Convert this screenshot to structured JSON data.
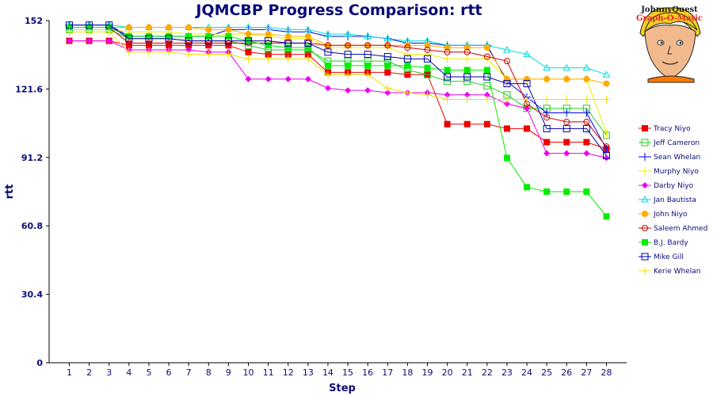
{
  "chart_data": {
    "type": "line",
    "title": "JQMCBP Progress Comparison: rtt",
    "xlabel": "Step",
    "ylabel": "rtt",
    "x": [
      1,
      2,
      3,
      4,
      5,
      6,
      7,
      8,
      9,
      10,
      11,
      12,
      13,
      14,
      15,
      16,
      17,
      18,
      19,
      20,
      21,
      22,
      23,
      24,
      25,
      26,
      27,
      28
    ],
    "yticks": [
      "0",
      "30.4",
      "60.8",
      "91.2",
      "121.6",
      "152"
    ],
    "ylim": [
      0,
      152
    ],
    "grid": false,
    "legend_position": "right",
    "series": [
      {
        "name": "Tracy Niyo",
        "color": "#ee0000",
        "marker": "filled-square",
        "values": [
          143,
          143,
          143,
          141,
          141,
          141,
          141,
          141,
          141,
          138,
          137,
          137,
          137,
          129,
          129,
          129,
          129,
          128,
          128,
          106,
          106,
          106,
          104,
          104,
          98,
          98,
          98,
          95
        ]
      },
      {
        "name": "Jeff Cameron",
        "color": "#22cc22",
        "marker": "open-square",
        "values": [
          148,
          148,
          148,
          144,
          144,
          144,
          143,
          143,
          143,
          141,
          139,
          139,
          139,
          134,
          134,
          134,
          134,
          130,
          128,
          125,
          125,
          123,
          119,
          113,
          113,
          113,
          113,
          101
        ]
      },
      {
        "name": "Sean Whelan",
        "color": "#0000ee",
        "marker": "plus",
        "values": [
          150,
          150,
          150,
          145,
          145,
          145,
          145,
          145,
          148,
          148,
          148,
          147,
          147,
          145,
          145,
          145,
          144,
          142,
          142,
          141,
          141,
          141,
          125,
          118,
          111,
          111,
          111,
          95
        ]
      },
      {
        "name": "Murphy Niyo",
        "color": "#eeee00",
        "marker": "plus",
        "values": [
          148,
          148,
          148,
          147,
          147,
          147,
          146,
          146,
          146,
          146,
          145,
          144,
          144,
          140,
          140,
          140,
          140,
          137,
          137,
          135,
          135,
          135,
          126,
          126,
          126,
          126,
          126,
          102
        ]
      },
      {
        "name": "Darby Niyo",
        "color": "#ee00ee",
        "marker": "filled-diamond",
        "values": [
          143,
          143,
          143,
          139,
          139,
          139,
          139,
          138,
          138,
          126,
          126,
          126,
          126,
          122,
          121,
          121,
          120,
          120,
          120,
          119,
          119,
          119,
          115,
          113,
          93,
          93,
          93,
          91
        ]
      },
      {
        "name": "Jan Bautista",
        "color": "#00dddd",
        "marker": "open-triangle",
        "values": [
          150,
          150,
          150,
          149,
          149,
          149,
          149,
          149,
          149,
          149,
          149,
          148,
          148,
          146,
          146,
          145,
          144,
          143,
          143,
          141,
          141,
          141,
          139,
          137,
          131,
          131,
          131,
          128
        ]
      },
      {
        "name": "John Niyo",
        "color": "#ffaa00",
        "marker": "filled-circle",
        "values": [
          149,
          149,
          149,
          149,
          149,
          149,
          149,
          148,
          148,
          146,
          146,
          145,
          145,
          141,
          141,
          141,
          141,
          141,
          141,
          140,
          140,
          140,
          126,
          126,
          126,
          126,
          126,
          124
        ]
      },
      {
        "name": "Saleem Ahmed",
        "color": "#cc0000",
        "marker": "open-circle",
        "values": [
          149,
          149,
          149,
          142,
          142,
          142,
          142,
          142,
          142,
          142,
          142,
          142,
          142,
          141,
          141,
          141,
          141,
          140,
          139,
          138,
          138,
          136,
          134,
          115,
          109,
          107,
          107,
          96
        ]
      },
      {
        "name": "B.J. Bardy",
        "color": "#00ee00",
        "marker": "filled-square",
        "values": [
          149,
          149,
          149,
          145,
          145,
          145,
          145,
          145,
          145,
          143,
          141,
          140,
          140,
          132,
          132,
          132,
          132,
          132,
          131,
          130,
          130,
          130,
          91,
          78,
          76,
          76,
          76,
          65
        ]
      },
      {
        "name": "Mike Gill",
        "color": "#0000aa",
        "marker": "open-square",
        "values": [
          150,
          150,
          150,
          144,
          144,
          144,
          143,
          143,
          143,
          143,
          143,
          142,
          142,
          138,
          137,
          137,
          136,
          135,
          135,
          127,
          127,
          127,
          124,
          124,
          104,
          104,
          104,
          92
        ]
      },
      {
        "name": "Kerie Whelan",
        "color": "#f0e000",
        "marker": "plus",
        "values": [
          147,
          147,
          147,
          138,
          138,
          138,
          137,
          137,
          137,
          135,
          135,
          135,
          135,
          128,
          128,
          128,
          122,
          120,
          119,
          117,
          117,
          117,
          117,
          117,
          117,
          117,
          117,
          117
        ]
      }
    ]
  },
  "logo": {
    "line1": "JohnnyQuest",
    "line2": "Graph-O-Matic",
    "colors": {
      "skin": "#f2b98c",
      "hair": "#f5d020",
      "shirt": "#ff7a00",
      "outline": "#222222"
    }
  }
}
